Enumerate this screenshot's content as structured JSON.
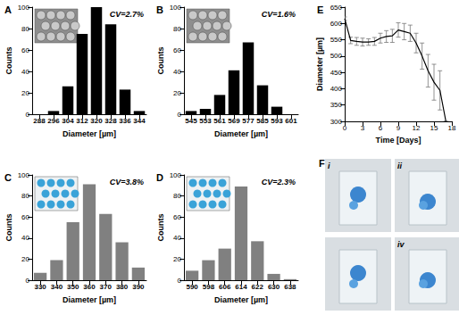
{
  "chart_data": [
    {
      "type": "bar",
      "title": "A",
      "annotations": [
        "CV=2.7%"
      ],
      "categories": [
        "288",
        "296",
        "304",
        "312",
        "320",
        "328",
        "336",
        "344"
      ],
      "values": [
        0,
        3,
        26,
        75,
        100,
        84,
        23,
        3
      ],
      "color": "#000000",
      "xlabel": "Diameter [µm]",
      "ylabel": "Counts",
      "ylim": [
        0,
        100
      ],
      "yticks": [
        0,
        20,
        40,
        60,
        80,
        100
      ],
      "grid": false
    },
    {
      "type": "bar",
      "title": "B",
      "annotations": [
        "CV=1.6%"
      ],
      "categories": [
        "545",
        "553",
        "561",
        "569",
        "577",
        "585",
        "593",
        "601"
      ],
      "values": [
        3,
        5,
        18,
        41,
        67,
        27,
        7,
        0
      ],
      "color": "#000000",
      "xlabel": "Diameter [µm]",
      "ylabel": "Counts",
      "ylim": [
        0,
        100
      ],
      "yticks": [
        0,
        20,
        40,
        60,
        80,
        100
      ],
      "grid": false
    },
    {
      "type": "bar",
      "title": "C",
      "annotations": [
        "CV=3.8%"
      ],
      "categories": [
        "330",
        "340",
        "350",
        "360",
        "370",
        "380",
        "390"
      ],
      "values": [
        7,
        19,
        55,
        91,
        63,
        36,
        12
      ],
      "color": "#808080",
      "xlabel": "Diameter [µm]",
      "ylabel": "Counts",
      "ylim": [
        0,
        100
      ],
      "yticks": [
        0,
        20,
        40,
        60,
        80,
        100
      ],
      "grid": false
    },
    {
      "type": "bar",
      "title": "D",
      "annotations": [
        "CV=2.3%"
      ],
      "categories": [
        "590",
        "598",
        "606",
        "614",
        "622",
        "630",
        "638"
      ],
      "values": [
        9,
        19,
        30,
        89,
        37,
        6,
        1
      ],
      "color": "#808080",
      "xlabel": "Diameter [µm]",
      "ylabel": "Counts",
      "ylim": [
        0,
        100
      ],
      "yticks": [
        0,
        20,
        40,
        60,
        80,
        100
      ],
      "grid": false
    },
    {
      "type": "line",
      "title": "E",
      "x": [
        0,
        1,
        2,
        3,
        4,
        5,
        6,
        7,
        8,
        9,
        10,
        11,
        12,
        13,
        14,
        15,
        16,
        17
      ],
      "values": [
        615,
        548,
        545,
        543,
        543,
        545,
        555,
        560,
        562,
        580,
        575,
        570,
        540,
        500,
        455,
        420,
        395,
        300
      ],
      "errors": [
        5,
        10,
        12,
        12,
        10,
        12,
        15,
        18,
        20,
        22,
        25,
        25,
        30,
        40,
        50,
        55,
        60,
        0
      ],
      "color": "#000000",
      "marker": "none",
      "xlabel": "Time [Days]",
      "ylabel": "Diameter [µm]",
      "xlim": [
        0,
        18
      ],
      "xticks": [
        0,
        3,
        6,
        9,
        12,
        15,
        18
      ],
      "ylim": [
        300,
        650
      ],
      "yticks": [
        300,
        350,
        400,
        450,
        500,
        550,
        600,
        650
      ],
      "grid": false
    }
  ],
  "photos": {
    "title": "F",
    "labels": [
      "i",
      "ii",
      null,
      "iv"
    ]
  }
}
